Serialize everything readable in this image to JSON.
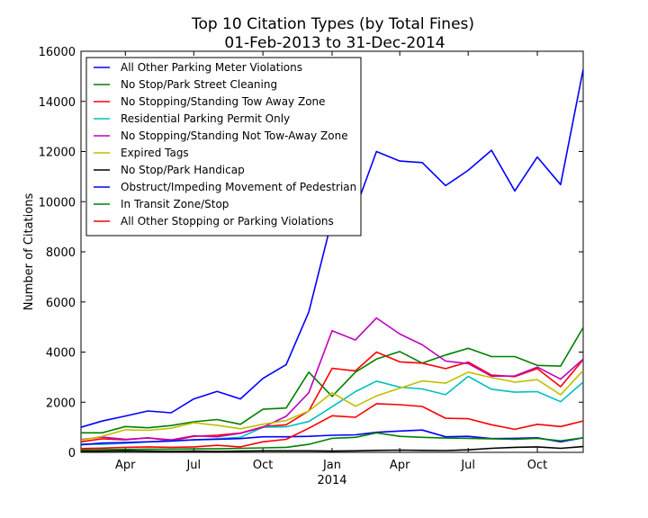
{
  "chart_data": {
    "type": "line",
    "title": "Top 10 Citation Types (by Total Fines)",
    "subtitle": "01-Feb-2013 to 31-Dec-2014",
    "xlabel": "",
    "ylabel": "Number of Citations",
    "ylim": [
      0,
      16000
    ],
    "yticks": [
      0,
      2000,
      4000,
      6000,
      8000,
      10000,
      12000,
      14000,
      16000
    ],
    "xlim": [
      "2013-02-01",
      "2014-12-01"
    ],
    "xticks": [
      {
        "date": "2013-04-01",
        "label": "Apr",
        "sublabel": ""
      },
      {
        "date": "2013-07-01",
        "label": "Jul",
        "sublabel": ""
      },
      {
        "date": "2013-10-01",
        "label": "Oct",
        "sublabel": ""
      },
      {
        "date": "2014-01-01",
        "label": "Jan",
        "sublabel": "2014"
      },
      {
        "date": "2014-04-01",
        "label": "Apr",
        "sublabel": ""
      },
      {
        "date": "2014-07-01",
        "label": "Jul",
        "sublabel": ""
      },
      {
        "date": "2014-10-01",
        "label": "Oct",
        "sublabel": ""
      }
    ],
    "grid": false,
    "legend_position": "top-left",
    "x": [
      "2013-02-01",
      "2013-03-01",
      "2013-04-01",
      "2013-05-01",
      "2013-06-01",
      "2013-07-01",
      "2013-08-01",
      "2013-09-01",
      "2013-10-01",
      "2013-11-01",
      "2013-12-01",
      "2014-01-01",
      "2014-02-01",
      "2014-03-01",
      "2014-04-01",
      "2014-05-01",
      "2014-06-01",
      "2014-07-01",
      "2014-08-01",
      "2014-09-01",
      "2014-10-01",
      "2014-11-01",
      "2014-12-01"
    ],
    "series": [
      {
        "name": "All Other Parking Meter Violations",
        "color": "#0000ff",
        "values": [
          1000,
          1250,
          1450,
          1650,
          1580,
          2130,
          2430,
          2130,
          2950,
          3500,
          5600,
          9300,
          9700,
          12000,
          11620,
          11560,
          10640,
          11250,
          12050,
          10430,
          11780,
          10680,
          15280
        ]
      },
      {
        "name": "No Stop/Park Street Cleaning",
        "color": "#008000",
        "values": [
          780,
          780,
          1030,
          980,
          1070,
          1220,
          1310,
          1120,
          1720,
          1770,
          3200,
          2230,
          3200,
          3720,
          4020,
          3560,
          3880,
          4150,
          3820,
          3820,
          3470,
          3440,
          4980
        ]
      },
      {
        "name": "No Stopping/Standing Tow Away Zone",
        "color": "#ff0000",
        "values": [
          420,
          540,
          500,
          580,
          460,
          640,
          680,
          770,
          1020,
          1100,
          1650,
          3350,
          3250,
          4000,
          3610,
          3560,
          3340,
          3600,
          3080,
          3020,
          3340,
          2620,
          3700
        ]
      },
      {
        "name": "Residential Parking Permit Only",
        "color": "#00bfbf",
        "values": [
          330,
          320,
          360,
          420,
          460,
          500,
          540,
          600,
          1000,
          1020,
          1230,
          1820,
          2420,
          2840,
          2600,
          2530,
          2300,
          3030,
          2520,
          2400,
          2420,
          2020,
          2800
        ]
      },
      {
        "name": "No Stopping/Standing Not Tow-Away Zone",
        "color": "#bf00bf",
        "values": [
          510,
          610,
          520,
          570,
          500,
          660,
          620,
          760,
          1000,
          1440,
          2380,
          4850,
          4480,
          5360,
          4720,
          4290,
          3640,
          3540,
          3040,
          3050,
          3400,
          2920,
          3720
        ]
      },
      {
        "name": "Expired Tags",
        "color": "#bfbf00",
        "values": [
          480,
          640,
          900,
          880,
          960,
          1180,
          1080,
          940,
          1120,
          1270,
          1650,
          2380,
          1840,
          2250,
          2560,
          2850,
          2760,
          3200,
          2980,
          2800,
          2900,
          2300,
          3260
        ]
      },
      {
        "name": "No Stop/Park Handicap",
        "color": "#000000",
        "values": [
          40,
          50,
          60,
          50,
          40,
          50,
          40,
          50,
          60,
          60,
          60,
          50,
          60,
          80,
          90,
          80,
          70,
          100,
          160,
          200,
          220,
          160,
          230
        ]
      },
      {
        "name": "Obstruct/Impeding Movement of Pedestrian",
        "color": "#0000ff",
        "values": [
          300,
          370,
          390,
          420,
          450,
          500,
          520,
          550,
          620,
          620,
          640,
          680,
          700,
          800,
          850,
          890,
          620,
          640,
          550,
          560,
          580,
          420,
          580
        ]
      },
      {
        "name": "In Transit Zone/Stop",
        "color": "#008000",
        "values": [
          100,
          110,
          120,
          130,
          130,
          140,
          140,
          160,
          180,
          200,
          320,
          560,
          600,
          780,
          640,
          600,
          570,
          560,
          540,
          520,
          560,
          460,
          580
        ]
      },
      {
        "name": "All Other Stopping or Parking Violations",
        "color": "#ff0000",
        "values": [
          150,
          170,
          200,
          220,
          200,
          220,
          280,
          220,
          420,
          520,
          960,
          1460,
          1400,
          1940,
          1900,
          1830,
          1360,
          1340,
          1100,
          920,
          1120,
          1030,
          1250
        ]
      }
    ]
  }
}
